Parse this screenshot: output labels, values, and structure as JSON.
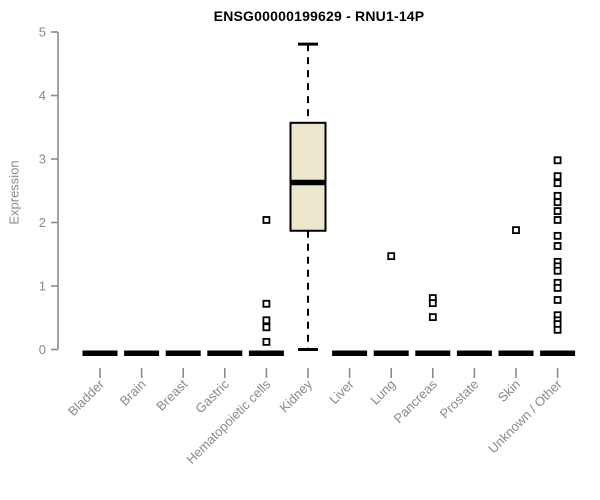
{
  "chart_data": {
    "type": "boxplot",
    "title": "ENSG00000199629 - RNU1-14P",
    "ylabel": "Expression",
    "xlabel": "",
    "ylim": [
      0,
      5
    ],
    "yticks": [
      0,
      1,
      2,
      3,
      4,
      5
    ],
    "grid": false,
    "legend": null,
    "categories": [
      "Bladder",
      "Brain",
      "Breast",
      "Gastric",
      "Hematopoietic cells",
      "Kidney",
      "Liver",
      "Lung",
      "Pancreas",
      "Prostate",
      "Skin",
      "Unknown / Other"
    ],
    "boxes": [
      {
        "category": "Bladder",
        "whisker_low": 0,
        "q1": 0,
        "median": 0,
        "q3": 0,
        "whisker_high": 0,
        "outliers": []
      },
      {
        "category": "Brain",
        "whisker_low": 0,
        "q1": 0,
        "median": 0,
        "q3": 0,
        "whisker_high": 0,
        "outliers": []
      },
      {
        "category": "Breast",
        "whisker_low": 0,
        "q1": 0,
        "median": 0,
        "q3": 0,
        "whisker_high": 0,
        "outliers": []
      },
      {
        "category": "Gastric",
        "whisker_low": 0,
        "q1": 0,
        "median": 0,
        "q3": 0,
        "whisker_high": 0,
        "outliers": []
      },
      {
        "category": "Hematopoietic cells",
        "whisker_low": 0,
        "q1": 0,
        "median": 0,
        "q3": 0,
        "whisker_high": 0,
        "outliers": [
          2.04,
          0.72,
          0.46,
          0.35,
          0.12
        ]
      },
      {
        "category": "Kidney",
        "whisker_low": 0,
        "q1": 1.87,
        "median": 2.63,
        "q3": 3.57,
        "whisker_high": 4.81,
        "outliers": []
      },
      {
        "category": "Liver",
        "whisker_low": 0,
        "q1": 0,
        "median": 0,
        "q3": 0,
        "whisker_high": 0,
        "outliers": []
      },
      {
        "category": "Lung",
        "whisker_low": 0,
        "q1": 0,
        "median": 0,
        "q3": 0,
        "whisker_high": 0,
        "outliers": [
          1.47
        ]
      },
      {
        "category": "Pancreas",
        "whisker_low": 0,
        "q1": 0,
        "median": 0,
        "q3": 0,
        "whisker_high": 0,
        "outliers": [
          0.81,
          0.73,
          0.51
        ]
      },
      {
        "category": "Prostate",
        "whisker_low": 0,
        "q1": 0,
        "median": 0,
        "q3": 0,
        "whisker_high": 0,
        "outliers": []
      },
      {
        "category": "Skin",
        "whisker_low": 0,
        "q1": 0,
        "median": 0,
        "q3": 0,
        "whisker_high": 0,
        "outliers": [
          1.88
        ]
      },
      {
        "category": "Unknown / Other",
        "whisker_low": 0,
        "q1": 0,
        "median": 0,
        "q3": 0,
        "whisker_high": 0,
        "outliers": [
          2.98,
          2.73,
          2.62,
          2.42,
          2.32,
          2.18,
          2.04,
          1.79,
          1.63,
          1.38,
          1.31,
          1.24,
          1.05,
          0.97,
          0.78,
          0.54,
          0.46,
          0.4,
          0.31
        ]
      }
    ],
    "colors": {
      "box_fill": "#ECE6CD",
      "box_stroke": "#000000",
      "median_color": "#000000",
      "whisker_color": "#000000",
      "outlier_stroke": "#000000",
      "outlier_fill": "#ffffff",
      "axis_color": "#8c8c8c",
      "tick_label_color": "#8a8a8a",
      "title_color": "#000000",
      "background": "#ffffff"
    }
  }
}
